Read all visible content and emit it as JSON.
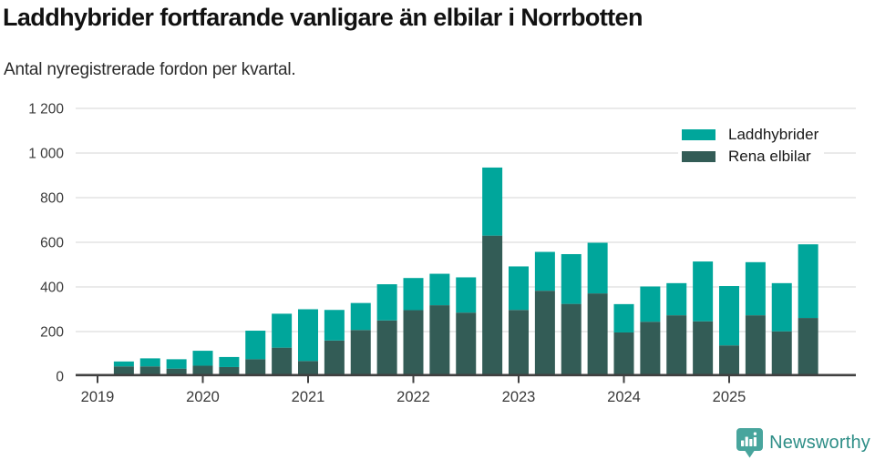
{
  "title": "Laddhybrider fortfarande vanligare än elbilar i Norrbotten",
  "subtitle": "Antal nyregistrerade fordon per kvartal.",
  "colors": {
    "laddhybrider": "#00a69b",
    "rena_elbilar": "#335c56",
    "gridline": "#e3e3e3",
    "axis": "#404040",
    "tick_text": "#3a3a3a",
    "title_text": "#111111"
  },
  "legend": {
    "items": [
      {
        "label": "Laddhybrider",
        "color": "#00a69b"
      },
      {
        "label": "Rena elbilar",
        "color": "#335c56"
      }
    ]
  },
  "footer": {
    "brand": "Newsworthy",
    "icon": "newsworthy-speech-bubble-bar-chart-icon",
    "text_color": "#2e8e87",
    "icon_color": "#48a59d"
  },
  "chart_data": {
    "type": "bar",
    "stacked": true,
    "title": "Laddhybrider fortfarande vanligare än elbilar i Norrbotten",
    "subtitle": "Antal nyregistrerade fordon per kvartal.",
    "xlabel": "",
    "ylabel": "",
    "grid": "horizontal",
    "legend_position": "top-right",
    "ylim": [
      0,
      1260
    ],
    "y_ticks": [
      0,
      200,
      400,
      600,
      800,
      1000,
      1200
    ],
    "y_tick_labels": [
      "0",
      "200",
      "400",
      "600",
      "800",
      "1 000",
      "1 200"
    ],
    "x_tick_labels": [
      "2019",
      "2020",
      "2021",
      "2022",
      "2023",
      "2024",
      "2025"
    ],
    "categories": [
      "2019 Q2",
      "2019 Q3",
      "2019 Q4",
      "2020 Q1",
      "2020 Q2",
      "2020 Q3",
      "2020 Q4",
      "2021 Q1",
      "2021 Q2",
      "2021 Q3",
      "2021 Q4",
      "2022 Q1",
      "2022 Q2",
      "2022 Q3",
      "2022 Q4",
      "2023 Q1",
      "2023 Q2",
      "2023 Q3",
      "2023 Q4",
      "2024 Q1",
      "2024 Q2",
      "2024 Q3",
      "2024 Q4",
      "2025 Q1",
      "2025 Q2",
      "2025 Q3",
      "2025 Q4"
    ],
    "series": [
      {
        "name": "Laddhybrider",
        "color": "#00a69b",
        "values": [
          22,
          36,
          42,
          67,
          45,
          128,
          152,
          232,
          137,
          121,
          162,
          144,
          141,
          158,
          305,
          195,
          174,
          223,
          227,
          127,
          158,
          144,
          268,
          266,
          238,
          216,
          330
        ]
      },
      {
        "name": "Rena elbilar",
        "color": "#335c56",
        "values": [
          44,
          44,
          34,
          47,
          41,
          76,
          128,
          68,
          160,
          207,
          250,
          296,
          318,
          285,
          630,
          297,
          383,
          324,
          371,
          196,
          244,
          273,
          246,
          138,
          273,
          201,
          261
        ]
      }
    ],
    "stack_order_bottom_to_top": [
      "Rena elbilar",
      "Laddhybrider"
    ]
  }
}
